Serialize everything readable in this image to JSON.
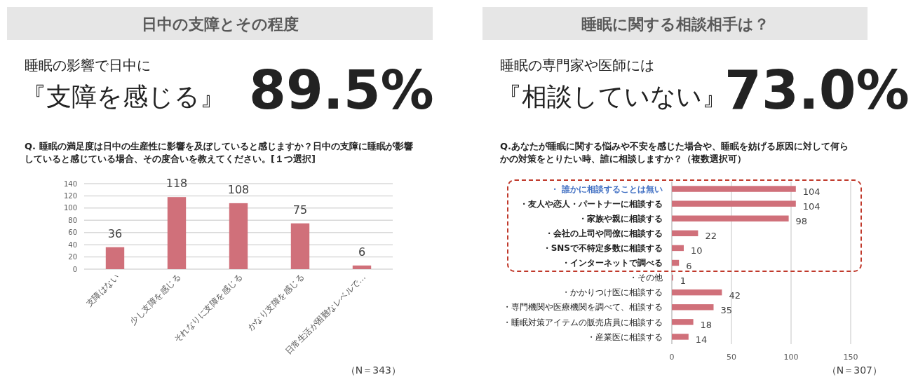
{
  "chart_data": [
    {
      "type": "bar",
      "title": "日中の支障とその程度",
      "subtitle": "Q. 睡眠の満足度は日中の生産性に影響を及ぼしていると感じますか？日中の支障に睡眠が影響していると感じている場合、その度合いを教えてください。[１つ選択]",
      "annotations": [
        "睡眠の影響で日中に",
        "『支障を感じる』",
        "89.5%",
        "（N＝343）"
      ],
      "categories": [
        "支障はない",
        "少し支障を感じる",
        "それなりに支障を感じる",
        "かなり支障を感じる",
        "日常生活が困難なレベルで…"
      ],
      "values": [
        36,
        118,
        108,
        75,
        6
      ],
      "color": "#d0707a",
      "ylim": [
        0,
        140
      ],
      "yticks": [
        0,
        20,
        40,
        60,
        80,
        100,
        120,
        140
      ],
      "grid": "y",
      "data_labels": true
    },
    {
      "type": "bar",
      "orientation": "horizontal",
      "title": "睡眠に関する相談相手は？",
      "subtitle": "Q.あなたが睡眠に関する悩みや不安を感じた場合や、睡眠を妨げる原因に対して何らかの対策をとりたい時、誰に相談しますか？（複数選択可）",
      "annotations": [
        "睡眠の専門家や医師には",
        "『相談していない』",
        "73.0%",
        "（N＝307）"
      ],
      "categories": [
        "・ 誰かに相談することは無い",
        "・友人や恋人・パートナーに相談する",
        "・家族や親に相談する",
        "・会社の上司や同僚に相談する",
        "・SNSで不特定多数に相談する",
        "・インターネットで調べる",
        "・その他",
        "・かかりつけ医に相談する",
        "・専門機関や医療機関を調べて、相談する",
        "・睡眠対策アイテムの販売店員に相談する",
        "・産業医に相談する"
      ],
      "values": [
        104,
        104,
        98,
        22,
        10,
        6,
        1,
        42,
        35,
        18,
        14
      ],
      "color": "#d0707a",
      "xlim": [
        0,
        150
      ],
      "xticks": [
        0,
        50,
        100,
        150
      ],
      "grid": "x",
      "data_labels": true
    }
  ]
}
